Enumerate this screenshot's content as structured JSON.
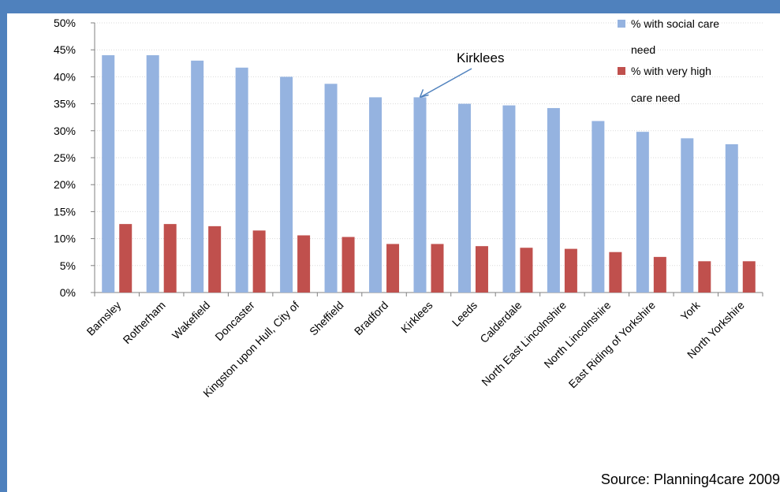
{
  "chart_data": {
    "type": "bar",
    "title": "",
    "xlabel": "",
    "ylabel": "",
    "ylim": [
      0,
      50
    ],
    "yticks": [
      "0%",
      "5%",
      "10%",
      "15%",
      "20%",
      "25%",
      "30%",
      "35%",
      "40%",
      "45%",
      "50%"
    ],
    "grid": true,
    "legend_position": "top-right",
    "categories": [
      "Barnsley",
      "Rotherham",
      "Wakefield",
      "Doncaster",
      "Kingston upon Hull, City of",
      "Sheffield",
      "Bradford",
      "Kirklees",
      "Leeds",
      "Calderdale",
      "North East Lincolnshire",
      "North Lincolnshire",
      "East Riding of Yorkshire",
      "York",
      "North Yorkshire"
    ],
    "series": [
      {
        "name": "% with social care need",
        "legend_lines": [
          "% with social care",
          "need"
        ],
        "color": "#95b3e0",
        "values": [
          44.0,
          44.0,
          43.0,
          41.7,
          40.0,
          38.7,
          36.2,
          36.2,
          35.0,
          34.7,
          34.2,
          31.8,
          29.8,
          28.6,
          27.5
        ]
      },
      {
        "name": "% with very high care need",
        "legend_lines": [
          "% with very high",
          "care need"
        ],
        "color": "#c0504d",
        "values": [
          12.7,
          12.7,
          12.3,
          11.5,
          10.6,
          10.3,
          9.0,
          9.0,
          8.6,
          8.3,
          8.1,
          7.5,
          6.6,
          5.8,
          5.8
        ]
      }
    ],
    "annotation": {
      "text": "Kirklees",
      "target_category": "Kirklees"
    }
  },
  "source_text": "Source: Planning4care 2009"
}
